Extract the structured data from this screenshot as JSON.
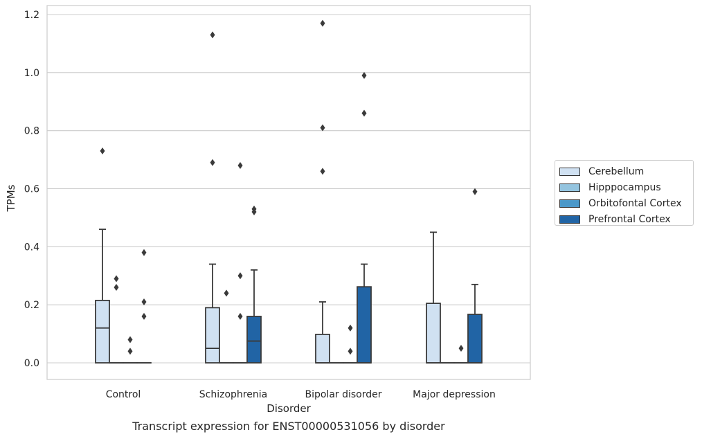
{
  "caption": "Transcript expression for ENST00000531056 by disorder",
  "chart_data": {
    "type": "boxplot",
    "xlabel": "Disorder",
    "ylabel": "TPMs",
    "ylim": [
      -0.058,
      1.23
    ],
    "yticks": [
      "0.0",
      "0.2",
      "0.4",
      "0.6",
      "0.8",
      "1.0",
      "1.2"
    ],
    "ytick_values": [
      0.0,
      0.2,
      0.4,
      0.6,
      0.8,
      1.0,
      1.2
    ],
    "grid": "horizontal",
    "legend_position": "right",
    "categories": [
      "Control",
      "Schizophrenia",
      "Bipolar disorder",
      "Major depression"
    ],
    "series": [
      {
        "name": "Cerebellum",
        "color": "#d0e1f2",
        "boxes": [
          {
            "q1": 0.0,
            "median": 0.12,
            "q3": 0.215,
            "whisker_low": 0.0,
            "whisker_high": 0.46,
            "outliers": [
              0.73
            ]
          },
          {
            "q1": 0.0,
            "median": 0.05,
            "q3": 0.19,
            "whisker_low": 0.0,
            "whisker_high": 0.34,
            "outliers": [
              0.69,
              1.13
            ]
          },
          {
            "q1": 0.0,
            "median": 0.0,
            "q3": 0.098,
            "whisker_low": 0.0,
            "whisker_high": 0.21,
            "outliers": [
              0.66,
              0.81,
              1.17
            ]
          },
          {
            "q1": 0.0,
            "median": 0.0,
            "q3": 0.205,
            "whisker_low": 0.0,
            "whisker_high": 0.45,
            "outliers": []
          }
        ]
      },
      {
        "name": "Hipppocampus",
        "color": "#94c4df",
        "boxes": [
          {
            "q1": 0.0,
            "median": 0.0,
            "q3": 0.0,
            "whisker_low": 0.0,
            "whisker_high": 0.0,
            "outliers": [
              0.26,
              0.29
            ]
          },
          {
            "q1": 0.0,
            "median": 0.0,
            "q3": 0.0,
            "whisker_low": 0.0,
            "whisker_high": 0.0,
            "outliers": [
              0.24
            ]
          },
          {
            "q1": 0.0,
            "median": 0.0,
            "q3": 0.0,
            "whisker_low": 0.0,
            "whisker_high": 0.0,
            "outliers": []
          },
          {
            "q1": 0.0,
            "median": 0.0,
            "q3": 0.0,
            "whisker_low": 0.0,
            "whisker_high": 0.0,
            "outliers": []
          }
        ]
      },
      {
        "name": "Orbitofontal Cortex",
        "color": "#4a98c9",
        "boxes": [
          {
            "q1": 0.0,
            "median": 0.0,
            "q3": 0.0,
            "whisker_low": 0.0,
            "whisker_high": 0.0,
            "outliers": [
              0.04,
              0.08
            ]
          },
          {
            "q1": 0.0,
            "median": 0.0,
            "q3": 0.0,
            "whisker_low": 0.0,
            "whisker_high": 0.0,
            "outliers": [
              0.16,
              0.3,
              0.68
            ]
          },
          {
            "q1": 0.0,
            "median": 0.0,
            "q3": 0.0,
            "whisker_low": 0.0,
            "whisker_high": 0.0,
            "outliers": [
              0.04,
              0.12
            ]
          },
          {
            "q1": 0.0,
            "median": 0.0,
            "q3": 0.0,
            "whisker_low": 0.0,
            "whisker_high": 0.0,
            "outliers": [
              0.05
            ]
          }
        ]
      },
      {
        "name": "Prefrontal Cortex",
        "color": "#2164a5",
        "boxes": [
          {
            "q1": 0.0,
            "median": 0.0,
            "q3": 0.0,
            "whisker_low": 0.0,
            "whisker_high": 0.0,
            "outliers": [
              0.16,
              0.21,
              0.38
            ]
          },
          {
            "q1": 0.0,
            "median": 0.075,
            "q3": 0.16,
            "whisker_low": 0.0,
            "whisker_high": 0.32,
            "outliers": [
              0.52,
              0.53
            ]
          },
          {
            "q1": 0.0,
            "median": 0.0,
            "q3": 0.262,
            "whisker_low": 0.0,
            "whisker_high": 0.34,
            "outliers": [
              0.86,
              0.99
            ]
          },
          {
            "q1": 0.0,
            "median": 0.0,
            "q3": 0.167,
            "whisker_low": 0.0,
            "whisker_high": 0.27,
            "outliers": [
              0.59
            ]
          }
        ]
      }
    ]
  }
}
